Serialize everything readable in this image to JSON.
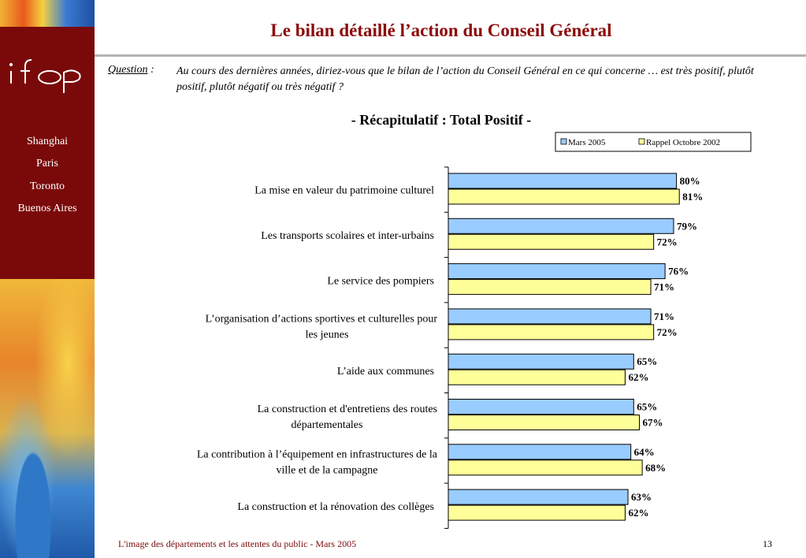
{
  "sidebar": {
    "logo_text": "ifop",
    "cities": [
      "Shanghai",
      "Paris",
      "Toronto",
      "Buenos Aires"
    ]
  },
  "header": {
    "title": "Le bilan détaillé l’action du Conseil Général"
  },
  "question": {
    "label": "Question",
    "separator": ":",
    "text": "Au cours des dernières années, diriez-vous que le bilan de l’action du Conseil Général en ce qui concerne … est très positif, plutôt positif, plutôt négatif ou très négatif ?"
  },
  "colors": {
    "brand": "#7a0a0a",
    "title": "#8b0a0a",
    "series_mars_2005": "#99ccff",
    "series_octobre_2002": "#ffff99"
  },
  "chart_data": {
    "type": "bar",
    "orientation": "horizontal",
    "title": "- Récapitulatif : Total Positif -",
    "categories": [
      "La mise en valeur du patrimoine culturel",
      "Les transports scolaires et inter-urbains",
      "Le service des pompiers",
      "L’organisation d’actions sportives et culturelles pour les jeunes",
      "L’aide aux communes",
      "La construction et d'entretiens des routes départementales",
      "La contribution à l’équipement en infrastructures de la ville et de la campagne",
      "La construction et la rénovation des collèges"
    ],
    "series": [
      {
        "name": "Mars 2005",
        "values": [
          80,
          79,
          76,
          71,
          65,
          65,
          64,
          63
        ]
      },
      {
        "name": "Rappel Octobre 2002",
        "values": [
          81,
          72,
          71,
          72,
          62,
          67,
          68,
          62
        ]
      }
    ],
    "value_suffix": "%",
    "xlim": [
      0,
      100
    ],
    "legend_position": "top-right",
    "grid": false
  },
  "footer": {
    "source": "L'image des départements et les attentes du public - Mars 2005",
    "page_number": "13"
  }
}
